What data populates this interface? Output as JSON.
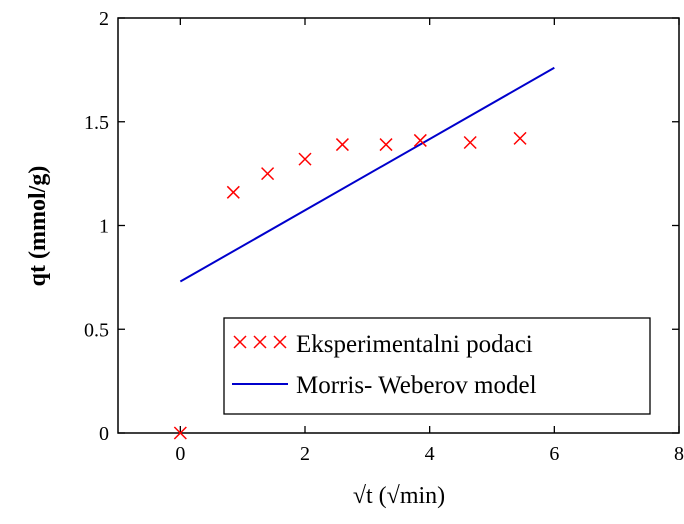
{
  "chart_data": {
    "type": "scatter",
    "title": "",
    "xlabel": "√t  (√min)",
    "ylabel": "qt (mmol/g)",
    "xlim": [
      -1,
      8
    ],
    "ylim": [
      0,
      2
    ],
    "x_ticks": [
      "0",
      "2",
      "4",
      "6",
      "8"
    ],
    "y_ticks": [
      "0",
      "0.5",
      "1",
      "1.5",
      "2"
    ],
    "grid": false,
    "legend_position": "bottom-right",
    "series": [
      {
        "name": "Eksperimentalni podaci",
        "kind": "scatter",
        "marker": "x",
        "color": "#ff0000",
        "points": [
          {
            "x": 0,
            "y": 0
          },
          {
            "x": 0.85,
            "y": 1.16
          },
          {
            "x": 1.4,
            "y": 1.25
          },
          {
            "x": 2.0,
            "y": 1.32
          },
          {
            "x": 2.6,
            "y": 1.39
          },
          {
            "x": 3.3,
            "y": 1.39
          },
          {
            "x": 3.85,
            "y": 1.41
          },
          {
            "x": 4.65,
            "y": 1.4
          },
          {
            "x": 5.45,
            "y": 1.42
          }
        ]
      },
      {
        "name": "Morris- Weberov model",
        "kind": "line",
        "color": "#0000cc",
        "points": [
          {
            "x": 0,
            "y": 0.73
          },
          {
            "x": 6.0,
            "y": 1.76
          }
        ]
      }
    ]
  }
}
